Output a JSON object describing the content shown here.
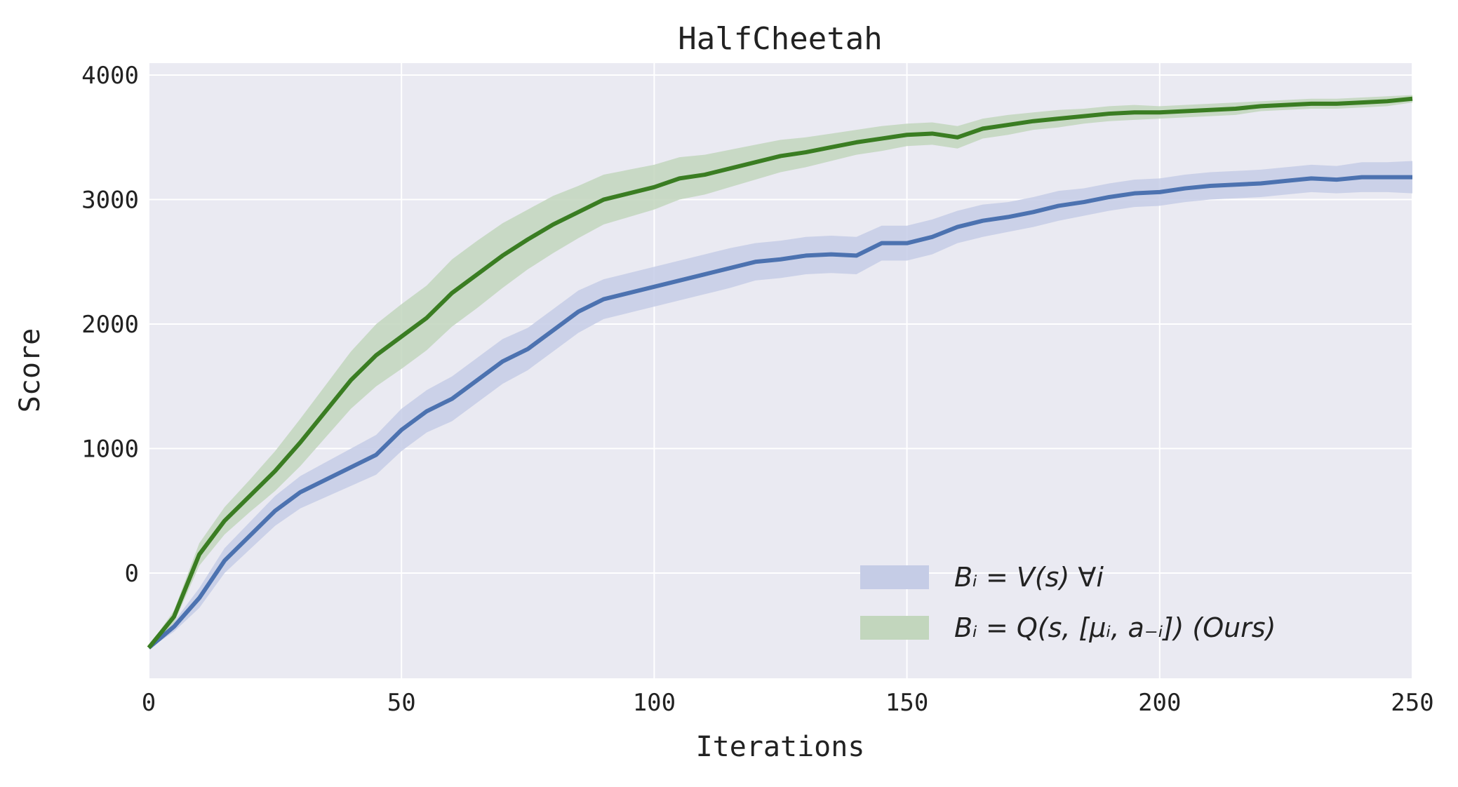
{
  "chart_data": {
    "type": "line",
    "title": "HalfCheetah",
    "xlabel": "Iterations",
    "ylabel": "Score",
    "xlim": [
      0,
      250
    ],
    "ylim": [
      -845,
      4096
    ],
    "xticks": [
      0,
      50,
      100,
      150,
      200,
      250
    ],
    "yticks": [
      0,
      1000,
      2000,
      3000,
      4000
    ],
    "grid": true,
    "legend_placement": "lower-right",
    "background": "#eaeaf2",
    "x": [
      0,
      5,
      10,
      15,
      20,
      25,
      30,
      35,
      40,
      45,
      50,
      55,
      60,
      65,
      70,
      75,
      80,
      85,
      90,
      95,
      100,
      105,
      110,
      115,
      120,
      125,
      130,
      135,
      140,
      145,
      150,
      155,
      160,
      165,
      170,
      175,
      180,
      185,
      190,
      195,
      200,
      205,
      210,
      215,
      220,
      225,
      230,
      235,
      240,
      245,
      250
    ],
    "series": [
      {
        "name": "Bᵢ = V(s) ∀i",
        "color": "#4c72b0",
        "band_color": "#c5cce6",
        "mean": [
          -600,
          -430,
          -200,
          100,
          300,
          500,
          650,
          750,
          850,
          950,
          1150,
          1300,
          1400,
          1550,
          1700,
          1800,
          1950,
          2100,
          2200,
          2250,
          2300,
          2350,
          2400,
          2450,
          2500,
          2520,
          2550,
          2560,
          2550,
          2650,
          2650,
          2700,
          2780,
          2830,
          2860,
          2900,
          2950,
          2980,
          3020,
          3050,
          3060,
          3090,
          3110,
          3120,
          3130,
          3150,
          3170,
          3160,
          3180,
          3180,
          3180
        ],
        "spread": [
          10,
          40,
          80,
          100,
          110,
          120,
          130,
          140,
          150,
          160,
          170,
          170,
          180,
          180,
          180,
          170,
          170,
          170,
          160,
          160,
          160,
          160,
          160,
          160,
          150,
          150,
          150,
          150,
          150,
          140,
          140,
          140,
          130,
          130,
          120,
          120,
          120,
          110,
          110,
          110,
          110,
          110,
          110,
          110,
          110,
          110,
          110,
          110,
          120,
          120,
          130
        ]
      },
      {
        "name": "Bᵢ = Q(s, [μᵢ, a₋ᵢ])  (Ours)",
        "color": "#3a7d22",
        "band_color": "#c2d6bd",
        "mean": [
          -600,
          -350,
          150,
          420,
          620,
          820,
          1050,
          1300,
          1550,
          1750,
          1900,
          2050,
          2250,
          2400,
          2550,
          2680,
          2800,
          2900,
          3000,
          3050,
          3100,
          3170,
          3200,
          3250,
          3300,
          3350,
          3380,
          3420,
          3460,
          3490,
          3520,
          3530,
          3500,
          3570,
          3600,
          3630,
          3650,
          3670,
          3690,
          3700,
          3700,
          3710,
          3720,
          3730,
          3750,
          3760,
          3770,
          3770,
          3780,
          3790,
          3810
        ],
        "spread": [
          10,
          50,
          90,
          110,
          130,
          160,
          190,
          210,
          230,
          250,
          260,
          260,
          270,
          270,
          260,
          240,
          230,
          210,
          200,
          190,
          180,
          170,
          160,
          150,
          140,
          130,
          120,
          110,
          100,
          100,
          90,
          90,
          90,
          80,
          80,
          70,
          70,
          60,
          60,
          60,
          50,
          50,
          50,
          50,
          40,
          40,
          40,
          40,
          40,
          40,
          30
        ]
      }
    ]
  }
}
